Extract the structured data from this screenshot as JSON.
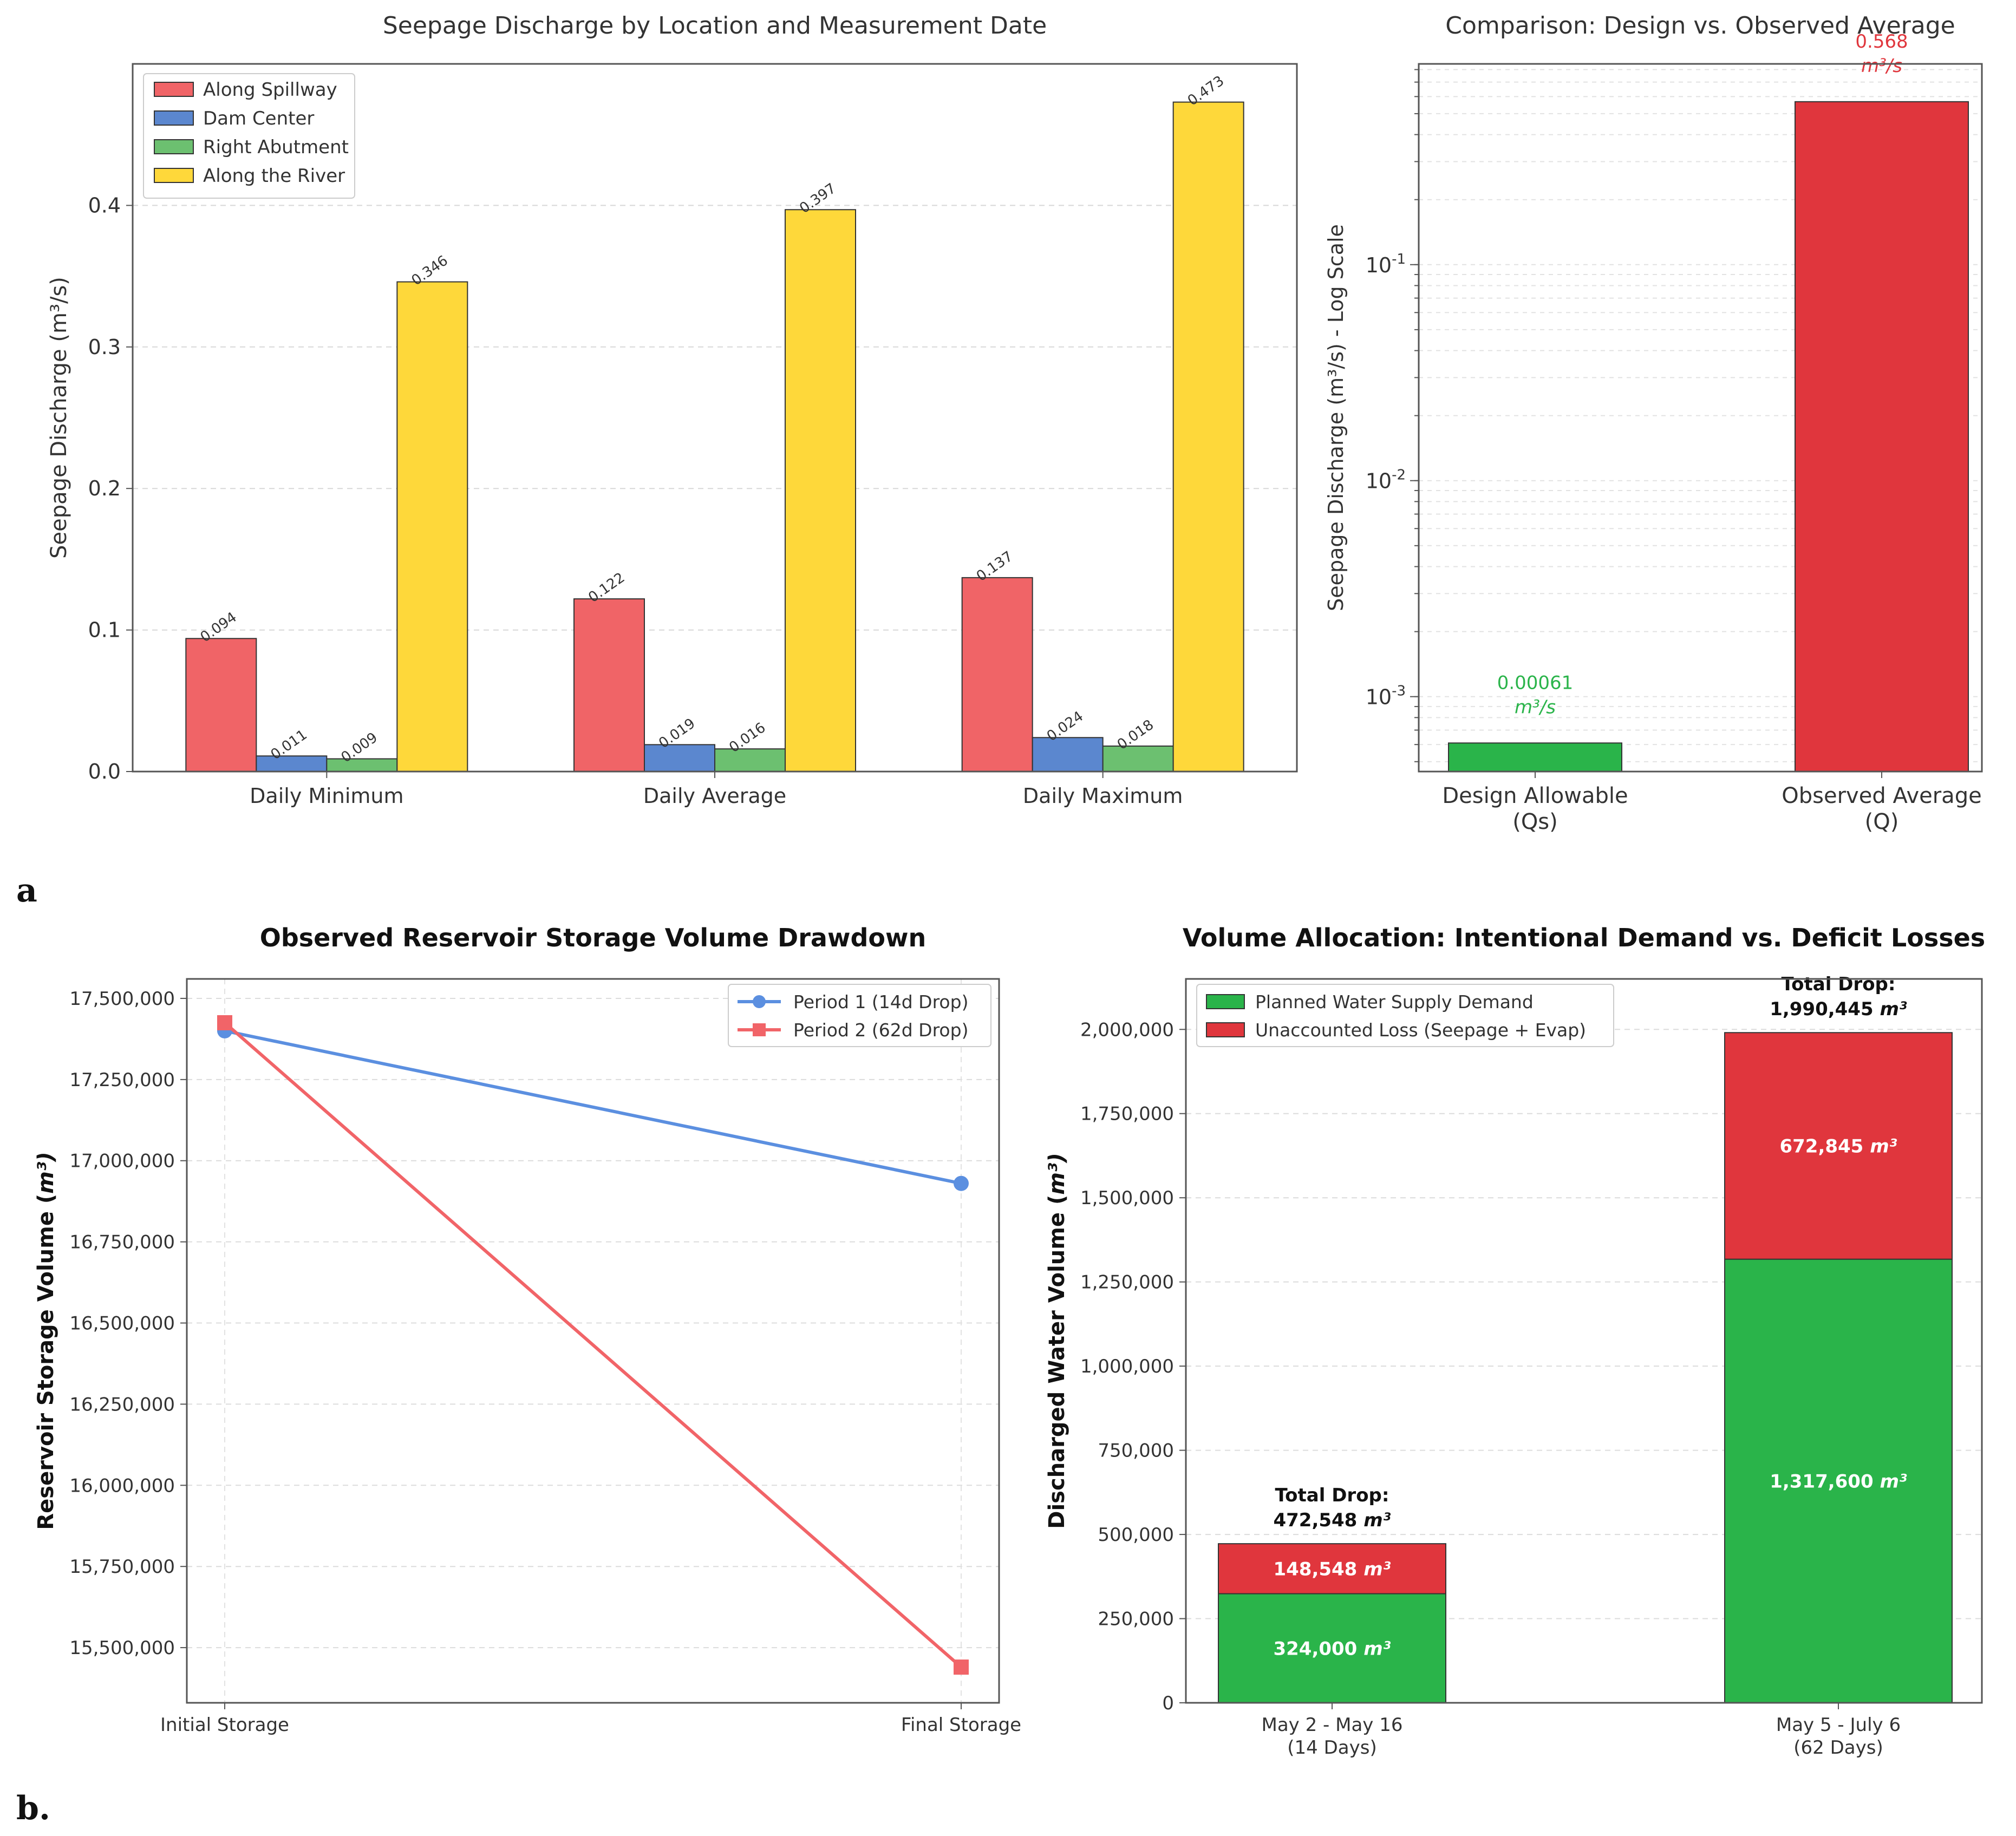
{
  "panels": {
    "a_label": "a",
    "b_label": "b."
  },
  "chart_data": [
    {
      "id": "seepage_grouped",
      "type": "bar",
      "title": "Seepage Discharge by Location and Measurement Date",
      "ylabel": "Seepage Discharge (m³/s)",
      "xlabel": "",
      "categories": [
        "Daily Minimum",
        "Daily Average",
        "Daily Maximum"
      ],
      "ylim": [
        0,
        0.5
      ],
      "yticks": [
        0.0,
        0.1,
        0.2,
        0.3,
        0.4
      ],
      "ytick_labels": [
        "0.0",
        "0.1",
        "0.2",
        "0.3",
        "0.4"
      ],
      "grid": "horizontal dashed",
      "legend_position": "top-left",
      "series": [
        {
          "name": "Along Spillway",
          "color": "#f06467",
          "values": [
            0.094,
            0.122,
            0.137
          ],
          "labels": [
            "0.094",
            "0.122",
            "0.137"
          ]
        },
        {
          "name": "Dam Center",
          "color": "#5b87cf",
          "values": [
            0.011,
            0.019,
            0.024
          ],
          "labels": [
            "0.011",
            "0.019",
            "0.024"
          ]
        },
        {
          "name": "Right Abutment",
          "color": "#6cc070",
          "values": [
            0.009,
            0.016,
            0.018
          ],
          "labels": [
            "0.009",
            "0.016",
            "0.018"
          ]
        },
        {
          "name": "Along the River",
          "color": "#fed83a",
          "values": [
            0.346,
            0.397,
            0.473
          ],
          "labels": [
            "0.346",
            "0.397",
            "0.473"
          ]
        }
      ]
    },
    {
      "id": "design_vs_observed",
      "type": "bar",
      "title": "Comparison: Design vs. Observed Average",
      "ylabel": "Seepage Discharge (m³/s) - Log Scale",
      "log_scale": true,
      "ylim": [
        0.00045,
        0.85
      ],
      "yticks": [
        0.001,
        0.01,
        0.1
      ],
      "ytick_labels": [
        {
          "base": "10",
          "exp": "-3"
        },
        {
          "base": "10",
          "exp": "-2"
        },
        {
          "base": "10",
          "exp": "-1"
        }
      ],
      "categories": [
        [
          "Design Allowable",
          "(Qs)"
        ],
        [
          "Observed Average",
          "(Q)"
        ]
      ],
      "values": [
        0.00061,
        0.568
      ],
      "colors": [
        "#2ab44a",
        "#e0363d"
      ],
      "value_labels": [
        [
          "0.00061",
          "m³/s"
        ],
        [
          "0.568",
          "m³/s"
        ]
      ],
      "grid": "horizontal dashed"
    },
    {
      "id": "storage_drawdown",
      "type": "line",
      "title": "Observed Reservoir Storage Volume Drawdown",
      "ylabel": "Reservoir Storage Volume (m³)",
      "xlabel": "",
      "categories": [
        "Initial Storage",
        "Final Storage"
      ],
      "ylim": [
        15330000,
        17560000
      ],
      "yticks": [
        15500000,
        15750000,
        16000000,
        16250000,
        16500000,
        16750000,
        17000000,
        17250000,
        17500000
      ],
      "ytick_labels": [
        "15,500,000",
        "15,750,000",
        "16,000,000",
        "16,250,000",
        "16,500,000",
        "16,750,000",
        "17,000,000",
        "17,250,000",
        "17,500,000"
      ],
      "legend_position": "top-right",
      "grid": "dashed",
      "series": [
        {
          "name": "Period 1 (14d Drop)",
          "color": "#5b8fe0",
          "marker": "circle",
          "values": [
            17400000,
            16930000
          ]
        },
        {
          "name": "Period 2 (62d Drop)",
          "color": "#f16468",
          "marker": "square",
          "values": [
            17425000,
            15440000
          ]
        }
      ]
    },
    {
      "id": "volume_allocation",
      "type": "bar",
      "stacked": true,
      "title": "Volume Allocation: Intentional Demand vs. Deficit Losses",
      "ylabel": "Discharged Water Volume (m³)",
      "categories": [
        [
          "May 2 - May 16",
          "(14 Days)"
        ],
        [
          "May 5 - July 6",
          "(62 Days)"
        ]
      ],
      "ylim": [
        0,
        2150000
      ],
      "yticks": [
        0,
        250000,
        500000,
        750000,
        1000000,
        1250000,
        1500000,
        1750000,
        2000000
      ],
      "ytick_labels": [
        "0",
        "250,000",
        "500,000",
        "750,000",
        "1,000,000",
        "1,250,000",
        "1,500,000",
        "1,750,000",
        "2,000,000"
      ],
      "legend_position": "top-left",
      "grid": "horizontal dashed",
      "series": [
        {
          "name": "Planned Water Supply Demand",
          "color": "#2ab44a",
          "values": [
            324000,
            1317600
          ],
          "labels": [
            "324,000 m³",
            "1,317,600 m³"
          ]
        },
        {
          "name": "Unaccounted Loss (Seepage + Evap)",
          "color": "#e0363d",
          "values": [
            148548,
            672845
          ],
          "labels": [
            "148,548 m³",
            "672,845 m³"
          ]
        }
      ],
      "totals": [
        {
          "line1": "Total Drop:",
          "line2": "472,548 m³",
          "value": 472548
        },
        {
          "line1": "Total Drop:",
          "line2": "1,990,445 m³",
          "value": 1990445
        }
      ]
    }
  ]
}
